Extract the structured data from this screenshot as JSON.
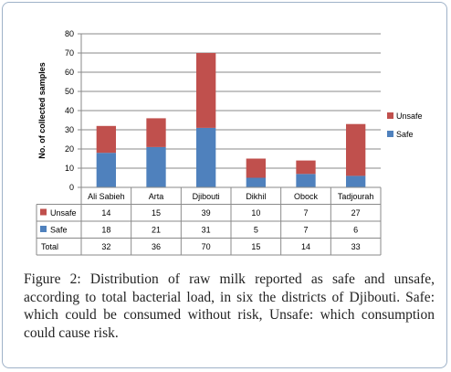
{
  "chart_data": {
    "type": "bar",
    "stacked": true,
    "categories": [
      "Ali Sabieh",
      "Arta",
      "Djibouti",
      "Dikhil",
      "Obock",
      "Tadjourah"
    ],
    "series": [
      {
        "name": "Safe",
        "values": [
          18,
          21,
          31,
          5,
          7,
          6
        ],
        "color": "#4f81bd"
      },
      {
        "name": "Unsafe",
        "values": [
          14,
          15,
          39,
          10,
          7,
          27
        ],
        "color": "#c0504d"
      }
    ],
    "totals": [
      32,
      36,
      70,
      15,
      14,
      33
    ],
    "ylabel": "No. of collected samples",
    "yticks": [
      0,
      10,
      20,
      30,
      40,
      50,
      60,
      70,
      80
    ],
    "ylim": [
      0,
      80
    ],
    "grid": true,
    "legend": "right",
    "legend_order": [
      "Unsafe",
      "Safe"
    ],
    "data_table": {
      "rows": [
        {
          "label": "Unsafe",
          "values": [
            14,
            15,
            39,
            10,
            7,
            27
          ]
        },
        {
          "label": "Safe",
          "values": [
            18,
            21,
            31,
            5,
            7,
            6
          ]
        },
        {
          "label": "Total",
          "values": [
            32,
            36,
            70,
            15,
            14,
            33
          ]
        }
      ]
    }
  },
  "caption": {
    "lead": "Figure 2:",
    "text": " Distribution of raw milk reported as safe and unsafe, according to total bacterial load, in six the districts of Djibouti. Safe: which could be consumed without risk, Unsafe: which consumption could cause risk."
  }
}
